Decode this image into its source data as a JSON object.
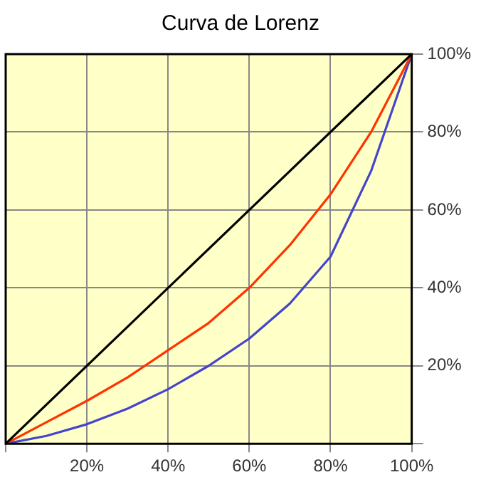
{
  "chart_data": {
    "type": "line",
    "title": "Curva de Lorenz",
    "xlim": [
      0,
      100
    ],
    "ylim": [
      0,
      100
    ],
    "xticks": [
      {
        "value": 0,
        "label": null
      },
      {
        "value": 20,
        "label": "20%"
      },
      {
        "value": 40,
        "label": "40%"
      },
      {
        "value": 60,
        "label": "60%"
      },
      {
        "value": 80,
        "label": "80%"
      },
      {
        "value": 100,
        "label": "100%"
      }
    ],
    "yticks": [
      {
        "value": 0,
        "label": null
      },
      {
        "value": 20,
        "label": "20%"
      },
      {
        "value": 40,
        "label": "40%"
      },
      {
        "value": 60,
        "label": "60%"
      },
      {
        "value": 80,
        "label": "80%"
      },
      {
        "value": 100,
        "label": "100%"
      }
    ],
    "grid": true,
    "legend": false,
    "marker": "none",
    "line_style": "solid",
    "series": [
      {
        "color": "#000000",
        "x": [
          0,
          100
        ],
        "values": [
          0,
          100
        ]
      },
      {
        "color": "#ff3300",
        "x": [
          0,
          10,
          20,
          30,
          40,
          50,
          60,
          70,
          80,
          90,
          100
        ],
        "values": [
          0,
          5.5,
          11,
          17,
          24,
          31,
          40,
          51,
          64,
          80,
          100
        ]
      },
      {
        "color": "#4444cc",
        "x": [
          0,
          10,
          20,
          30,
          40,
          50,
          60,
          70,
          80,
          90,
          100
        ],
        "values": [
          0,
          2,
          5,
          9,
          14,
          20,
          27,
          36,
          48,
          70,
          100
        ]
      }
    ]
  }
}
